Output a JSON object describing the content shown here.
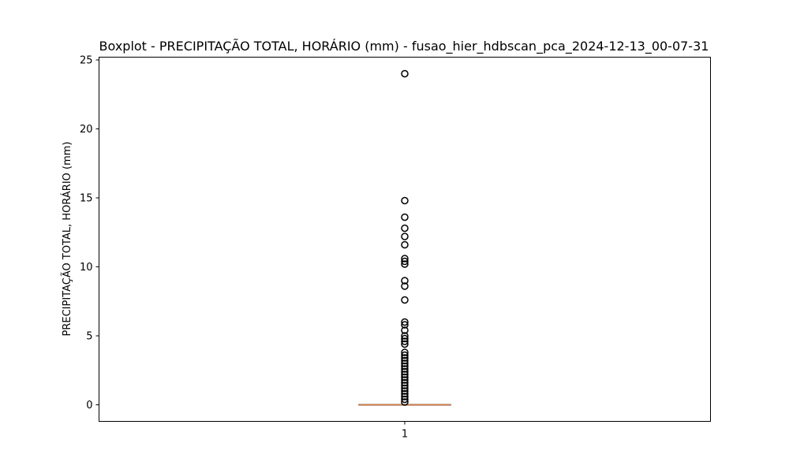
{
  "chart_data": {
    "type": "boxplot",
    "title": "Boxplot - PRECIPITAÇÃO TOTAL, HORÁRIO (mm) - fusao_hier_hdbscan_pca_2024-12-13_00-07-31",
    "xlabel": "",
    "ylabel": "PRECIPITAÇÃO TOTAL, HORÁRIO (mm)",
    "categories": [
      "1"
    ],
    "yticks": [
      "0",
      "5",
      "10",
      "15",
      "20",
      "25"
    ],
    "ytick_values": [
      0,
      5,
      10,
      15,
      20,
      25
    ],
    "ylim": [
      -1.2,
      25.2
    ],
    "grid": false,
    "box": {
      "whislo": 0,
      "q1": 0,
      "med": 0,
      "q3": 0,
      "whishi": 0
    },
    "outliers": [
      0.2,
      0.4,
      0.6,
      0.8,
      1.0,
      1.2,
      1.4,
      1.6,
      1.8,
      2.0,
      2.2,
      2.4,
      2.6,
      2.8,
      3.0,
      3.2,
      3.4,
      3.6,
      3.8,
      4.4,
      4.6,
      4.8,
      5.0,
      5.4,
      5.8,
      6.0,
      7.6,
      8.6,
      9.0,
      10.2,
      10.4,
      10.6,
      11.6,
      12.2,
      12.8,
      13.6,
      14.8,
      24.0
    ],
    "colors": {
      "median": "#e08040",
      "box": "#000000",
      "outlier": "#000000"
    }
  }
}
